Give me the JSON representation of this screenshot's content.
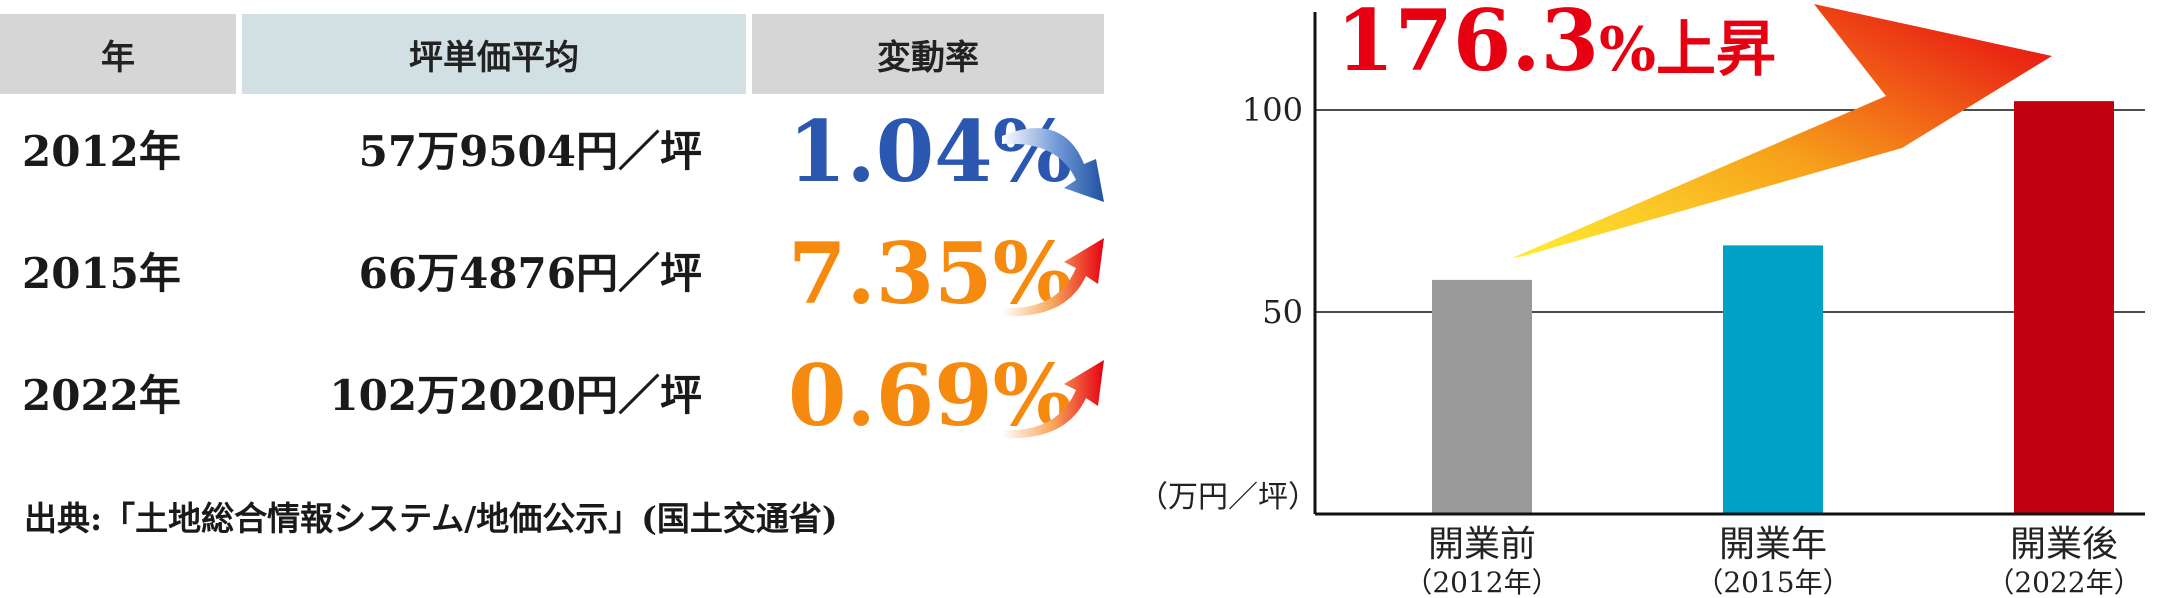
{
  "table": {
    "headers": [
      "年",
      "坪単価平均",
      "変動率"
    ],
    "rows": [
      {
        "year": "2012年",
        "price": "57万9504円／坪",
        "change": "1.04%",
        "change_color": "#2b57b0",
        "trend": "down"
      },
      {
        "year": "2015年",
        "price": "66万4876円／坪",
        "change": "7.35%",
        "change_color": "#f58a0f",
        "trend": "up"
      },
      {
        "year": "2022年",
        "price": "102万2020円／坪",
        "change": "0.69%",
        "change_color": "#f58a0f",
        "trend": "up"
      }
    ],
    "source": "出典:「土地総合情報システム/地価公示」(国土交通省)"
  },
  "chart_data": {
    "type": "bar",
    "title_value": "176.3",
    "title_suffix": "%上昇",
    "title_color": "#e60012",
    "categories": [
      "開業前",
      "開業年",
      "開業後"
    ],
    "category_sublabels": [
      "（2012年）",
      "（2015年）",
      "（2022年）"
    ],
    "values": [
      57.95,
      66.49,
      102.2
    ],
    "bar_colors": [
      "#9a9a9a",
      "#00a1c6",
      "#c00010"
    ],
    "yticks": [
      50,
      100
    ],
    "ylim": [
      0,
      125
    ],
    "ylabel": "（万円／坪）",
    "grid": true
  }
}
